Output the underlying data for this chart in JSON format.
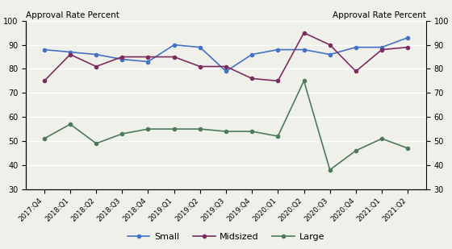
{
  "x_labels": [
    "2017:Q4",
    "2018:Q1",
    "2018:Q2",
    "2018:Q3",
    "2018:Q4",
    "2019:Q1",
    "2019:Q2",
    "2019:Q3",
    "2019:Q4",
    "2020:Q1",
    "2020:Q2",
    "2020:Q3",
    "2020:Q4",
    "2021:Q1",
    "2021:Q2"
  ],
  "small": [
    88,
    87,
    86,
    84,
    83,
    90,
    89,
    79,
    86,
    88,
    88,
    86,
    89,
    89,
    93
  ],
  "midsized": [
    75,
    86,
    81,
    85,
    85,
    85,
    81,
    81,
    76,
    75,
    95,
    90,
    79,
    88,
    89
  ],
  "large": [
    51,
    57,
    49,
    53,
    55,
    55,
    55,
    54,
    54,
    52,
    75,
    38,
    46,
    51,
    47
  ],
  "small_color": "#4472C4",
  "midsized_color": "#7B2D5E",
  "large_color": "#4E7A5A",
  "label_left": "Approval Rate Percent",
  "label_right": "Approval Rate Percent",
  "ylim": [
    30,
    100
  ],
  "yticks": [
    30,
    40,
    50,
    60,
    70,
    80,
    90,
    100
  ],
  "bg_color": "#F0F0EB",
  "grid_color": "#FFFFFF"
}
